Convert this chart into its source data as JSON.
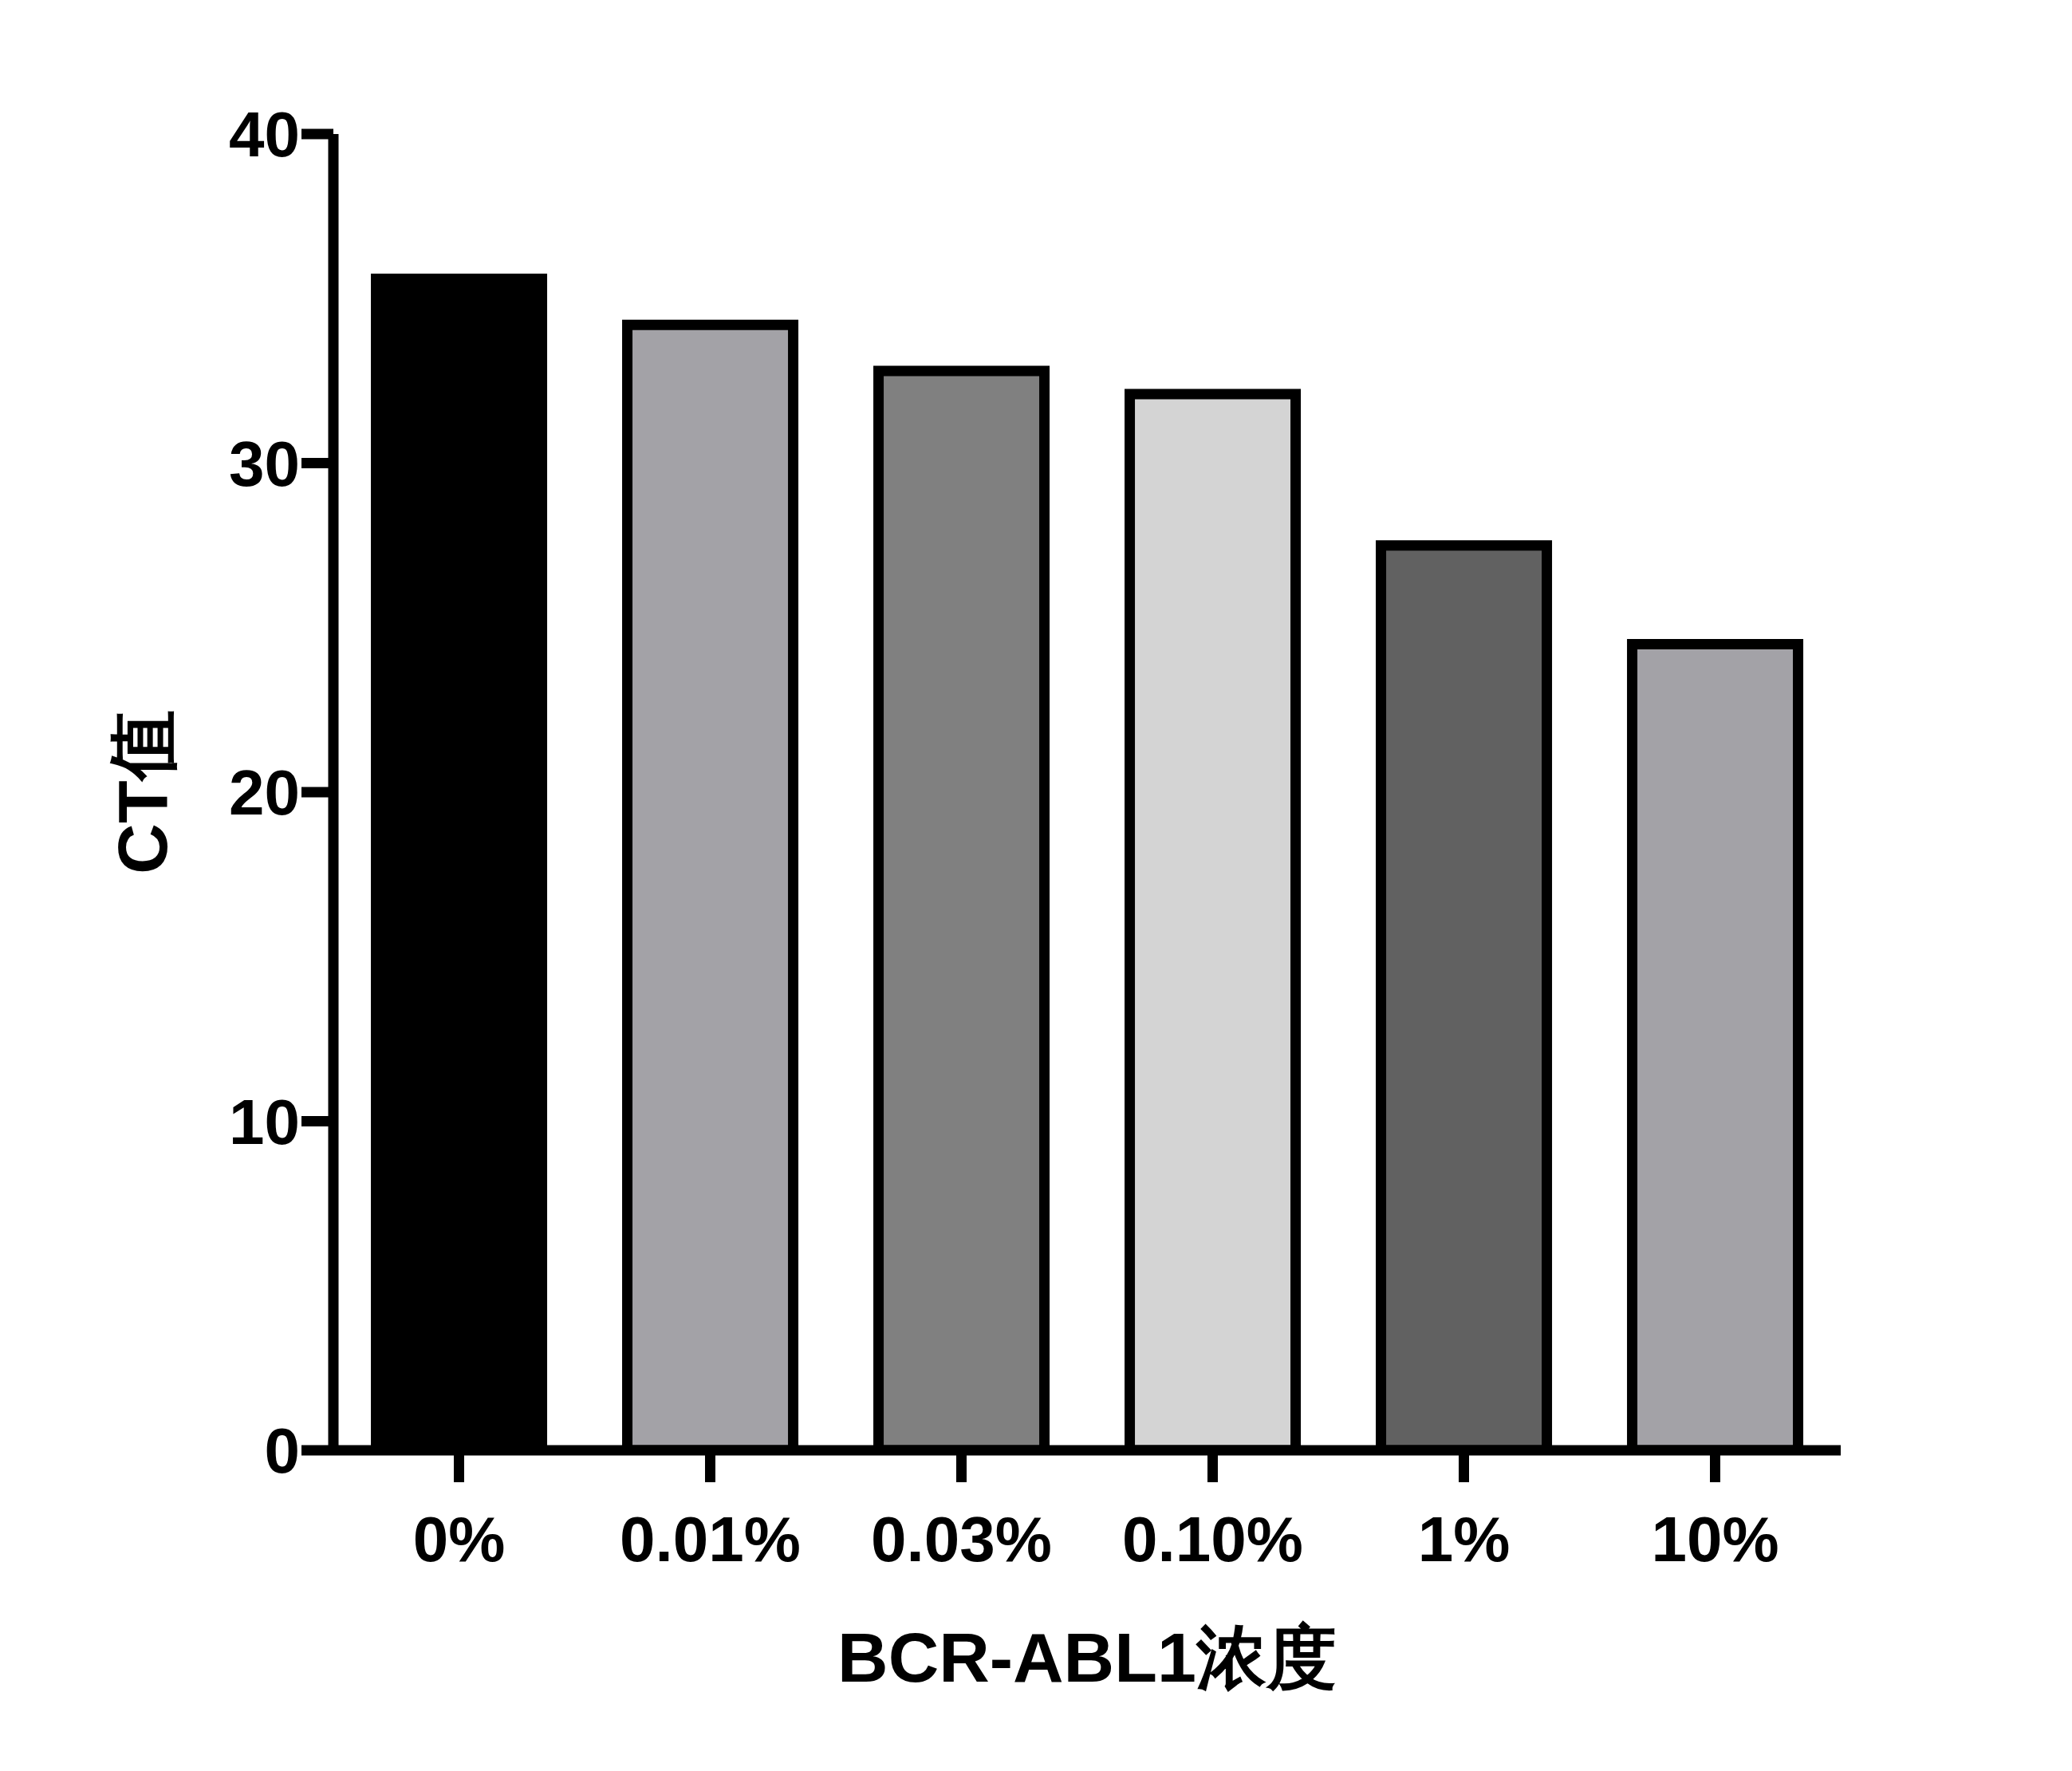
{
  "chart_data": {
    "type": "bar",
    "xlabel": "BCR-ABL1浓度",
    "ylabel": "CT值",
    "categories": [
      "0%",
      "0.01%",
      "0.03%",
      "0.10%",
      "1%",
      "10%"
    ],
    "values": [
      35.6,
      34.2,
      32.8,
      32.1,
      27.5,
      24.5
    ],
    "colors": [
      "#000000",
      "#a3a2a7",
      "#808080",
      "#d4d4d4",
      "#616161",
      "#a3a2a7"
    ],
    "ylim": [
      0,
      40
    ],
    "yticks": [
      0,
      10,
      20,
      30,
      40
    ]
  }
}
